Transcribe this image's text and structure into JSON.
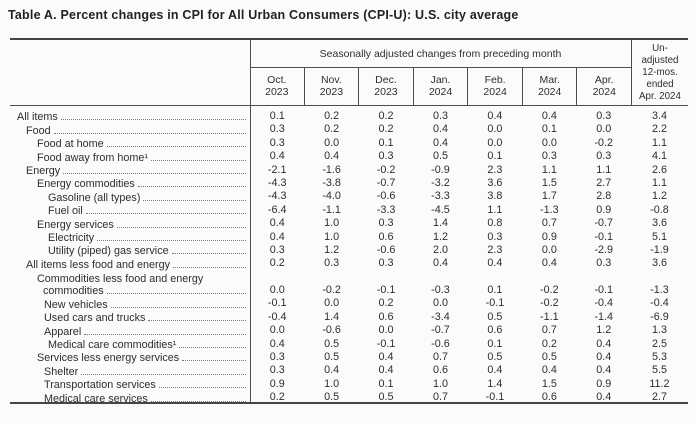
{
  "title": "Table A. Percent changes in CPI for All Urban Consumers (CPI-U): U.S. city average",
  "table": {
    "spanner": "Seasonally adjusted changes from preceding month",
    "month_columns": [
      {
        "abbr": "Oct.",
        "year": "2023"
      },
      {
        "abbr": "Nov.",
        "year": "2023"
      },
      {
        "abbr": "Dec.",
        "year": "2023"
      },
      {
        "abbr": "Jan.",
        "year": "2024"
      },
      {
        "abbr": "Feb.",
        "year": "2024"
      },
      {
        "abbr": "Mar.",
        "year": "2024"
      },
      {
        "abbr": "Apr.",
        "year": "2024"
      }
    ],
    "unadjusted_header_lines": [
      "Un-",
      "adjusted",
      "12-mos.",
      "ended",
      "Apr. 2024"
    ],
    "rows": [
      {
        "label": "All items",
        "indent": 0,
        "values": [
          "0.1",
          "0.2",
          "0.2",
          "0.3",
          "0.4",
          "0.4",
          "0.3"
        ],
        "unadjusted": "3.4"
      },
      {
        "label": "Food",
        "indent": 1,
        "values": [
          "0.3",
          "0.2",
          "0.2",
          "0.4",
          "0.0",
          "0.1",
          "0.0"
        ],
        "unadjusted": "2.2"
      },
      {
        "label": "Food at home",
        "indent": 2,
        "values": [
          "0.3",
          "0.0",
          "0.1",
          "0.4",
          "0.0",
          "0.0",
          "-0.2"
        ],
        "unadjusted": "1.1"
      },
      {
        "label": "Food away from home¹",
        "indent": 2,
        "values": [
          "0.4",
          "0.4",
          "0.3",
          "0.5",
          "0.1",
          "0.3",
          "0.3"
        ],
        "unadjusted": "4.1"
      },
      {
        "label": "Energy",
        "indent": 1,
        "values": [
          "-2.1",
          "-1.6",
          "-0.2",
          "-0.9",
          "2.3",
          "1.1",
          "1.1"
        ],
        "unadjusted": "2.6"
      },
      {
        "label": "Energy commodities",
        "indent": 2,
        "values": [
          "-4.3",
          "-3.8",
          "-0.7",
          "-3.2",
          "3.6",
          "1.5",
          "2.7"
        ],
        "unadjusted": "1.1"
      },
      {
        "label": "Gasoline (all types)",
        "indent": 4,
        "values": [
          "-4.3",
          "-4.0",
          "-0.6",
          "-3.3",
          "3.8",
          "1.7",
          "2.8"
        ],
        "unadjusted": "1.2"
      },
      {
        "label": "Fuel oil",
        "indent": 4,
        "values": [
          "-6.4",
          "-1.1",
          "-3.3",
          "-4.5",
          "1.1",
          "-1.3",
          "0.9"
        ],
        "unadjusted": "-0.8"
      },
      {
        "label": "Energy services",
        "indent": 2,
        "values": [
          "0.4",
          "1.0",
          "0.3",
          "1.4",
          "0.8",
          "0.7",
          "-0.7"
        ],
        "unadjusted": "3.6"
      },
      {
        "label": "Electricity",
        "indent": 4,
        "values": [
          "0.4",
          "1.0",
          "0.6",
          "1.2",
          "0.3",
          "0.9",
          "-0.1"
        ],
        "unadjusted": "5.1"
      },
      {
        "label": "Utility (piped) gas service",
        "indent": 4,
        "values": [
          "0.3",
          "1.2",
          "-0.6",
          "2.0",
          "2.3",
          "0.0",
          "-2.9"
        ],
        "unadjusted": "-1.9"
      },
      {
        "label": "All items less food and energy",
        "indent": 1,
        "values": [
          "0.2",
          "0.3",
          "0.3",
          "0.4",
          "0.4",
          "0.4",
          "0.3"
        ],
        "unadjusted": "3.6"
      },
      {
        "label": "Commodities less food and energy",
        "label2": "commodities",
        "indent": 2,
        "values": [
          "0.0",
          "-0.2",
          "-0.1",
          "-0.3",
          "0.1",
          "-0.2",
          "-0.1"
        ],
        "unadjusted": "-1.3"
      },
      {
        "label": "New vehicles",
        "indent": 3,
        "values": [
          "-0.1",
          "0.0",
          "0.2",
          "0.0",
          "-0.1",
          "-0.2",
          "-0.4"
        ],
        "unadjusted": "-0.4"
      },
      {
        "label": "Used cars and trucks",
        "indent": 3,
        "values": [
          "-0.4",
          "1.4",
          "0.6",
          "-3.4",
          "0.5",
          "-1.1",
          "-1.4"
        ],
        "unadjusted": "-6.9"
      },
      {
        "label": "Apparel",
        "indent": 3,
        "values": [
          "0.0",
          "-0.6",
          "0.0",
          "-0.7",
          "0.6",
          "0.7",
          "1.2"
        ],
        "unadjusted": "1.3"
      },
      {
        "label": "Medical care commodities¹",
        "indent": 4,
        "values": [
          "0.4",
          "0.5",
          "-0.1",
          "-0.6",
          "0.1",
          "0.2",
          "0.4"
        ],
        "unadjusted": "2.5"
      },
      {
        "label": "Services less energy services",
        "indent": 2,
        "values": [
          "0.3",
          "0.5",
          "0.4",
          "0.7",
          "0.5",
          "0.5",
          "0.4"
        ],
        "unadjusted": "5.3"
      },
      {
        "label": "Shelter",
        "indent": 3,
        "values": [
          "0.3",
          "0.4",
          "0.4",
          "0.6",
          "0.4",
          "0.4",
          "0.4"
        ],
        "unadjusted": "5.5"
      },
      {
        "label": "Transportation services",
        "indent": 3,
        "values": [
          "0.9",
          "1.0",
          "0.1",
          "1.0",
          "1.4",
          "1.5",
          "0.9"
        ],
        "unadjusted": "11.2"
      },
      {
        "label": "Medical care services",
        "indent": 3,
        "values": [
          "0.2",
          "0.5",
          "0.5",
          "0.7",
          "-0.1",
          "0.6",
          "0.4"
        ],
        "unadjusted": "2.7"
      }
    ]
  },
  "colors": {
    "page_background": "#fbfbfb",
    "text": "#2e2e2e",
    "rule": "#454545"
  }
}
